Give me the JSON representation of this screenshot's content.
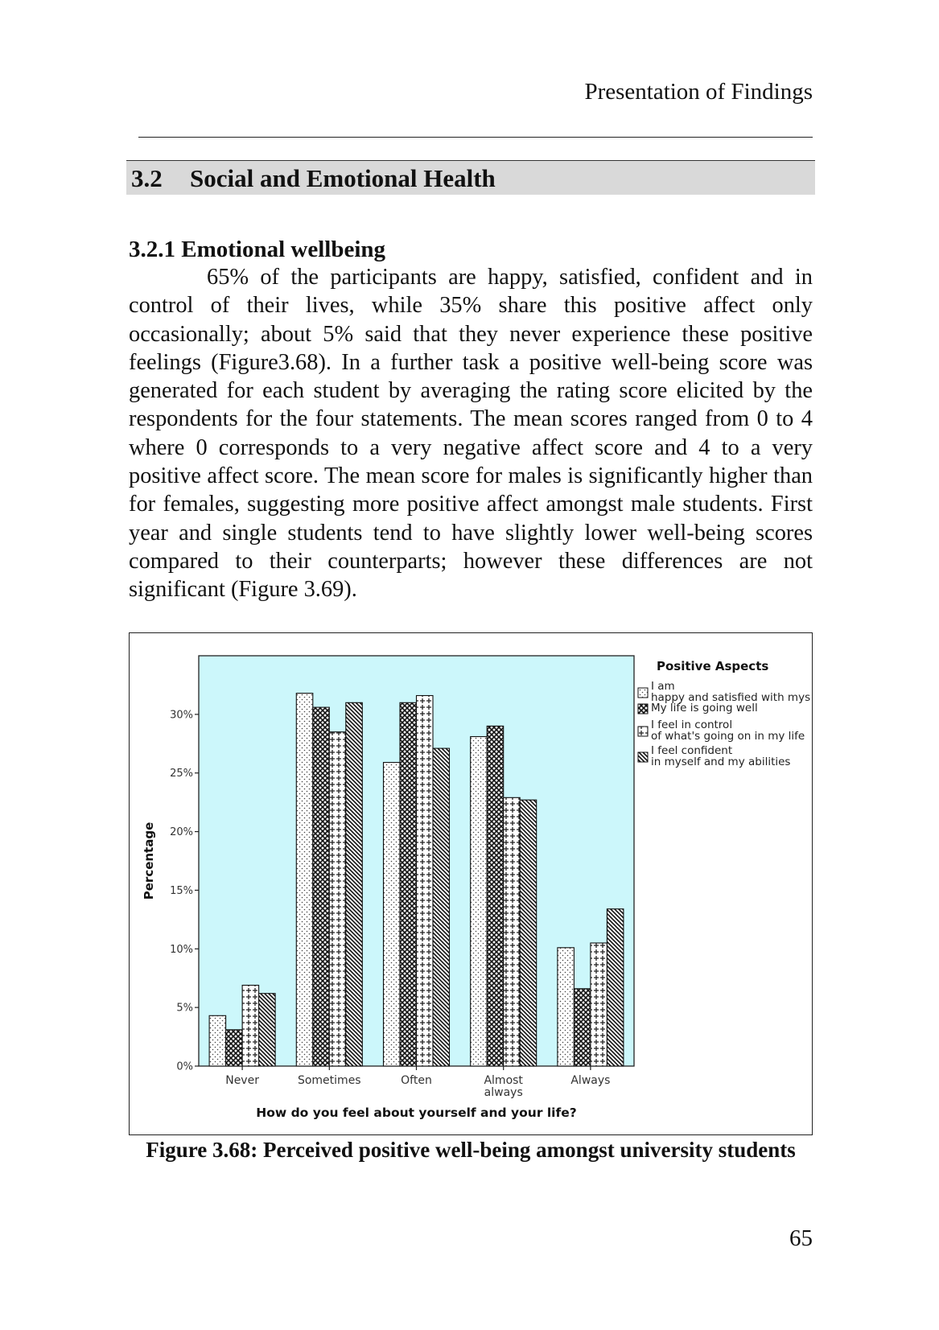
{
  "header": {
    "running_title": "Presentation of Findings"
  },
  "section": {
    "number": "3.2",
    "title": "Social and Emotional Health"
  },
  "subsection": {
    "title": "3.2.1 Emotional wellbeing"
  },
  "body": {
    "paragraph": "65% of the participants are happy, satisfied, confident and in control of their lives, while 35% share this positive affect only occasionally; about 5% said that they never experience these positive feelings (Figure3.68).  In a further task a positive well-being score was generated for each student by averaging the rating score elicited by the respondents for the four statements.  The mean scores ranged from 0 to 4 where 0 corresponds to a very negative affect score and 4 to a very positive affect score. The mean score for males is significantly higher than for females, suggesting more positive affect amongst male students. First year and single students tend to have slightly lower well-being scores compared to their counterparts; however these differences are not significant (Figure 3.69)."
  },
  "figure": {
    "caption": "Figure 3.68: Perceived positive well-being amongst university students"
  },
  "page_number": "65",
  "chart_data": {
    "type": "bar",
    "xlabel": "How do you feel about yourself and your life?",
    "ylabel": "Percentage",
    "categories": [
      "Never",
      "Sometimes",
      "Often",
      "Almost always",
      "Always"
    ],
    "y_ticks": [
      "0%",
      "5%",
      "10%",
      "15%",
      "20%",
      "25%",
      "30%"
    ],
    "ylim": [
      0,
      35
    ],
    "grid": false,
    "plot_background": "#ccf7fb",
    "legend_title": "Positive Aspects",
    "legend_position": "right",
    "series": [
      {
        "name": "I am happy and satisfied with myself",
        "pattern": "dotted",
        "values": [
          4.3,
          31.8,
          25.9,
          28.1,
          10.1
        ]
      },
      {
        "name": "My life is going well",
        "pattern": "crosshatch",
        "values": [
          3.1,
          30.6,
          31.0,
          29.0,
          6.6
        ]
      },
      {
        "name": "I feel in control of what's going on in my life",
        "pattern": "plus",
        "values": [
          6.9,
          28.5,
          31.6,
          22.9,
          10.5
        ]
      },
      {
        "name": "I feel confident in myself and my abilities",
        "pattern": "diagonal",
        "values": [
          6.2,
          31.0,
          27.1,
          22.7,
          13.4
        ]
      }
    ]
  }
}
